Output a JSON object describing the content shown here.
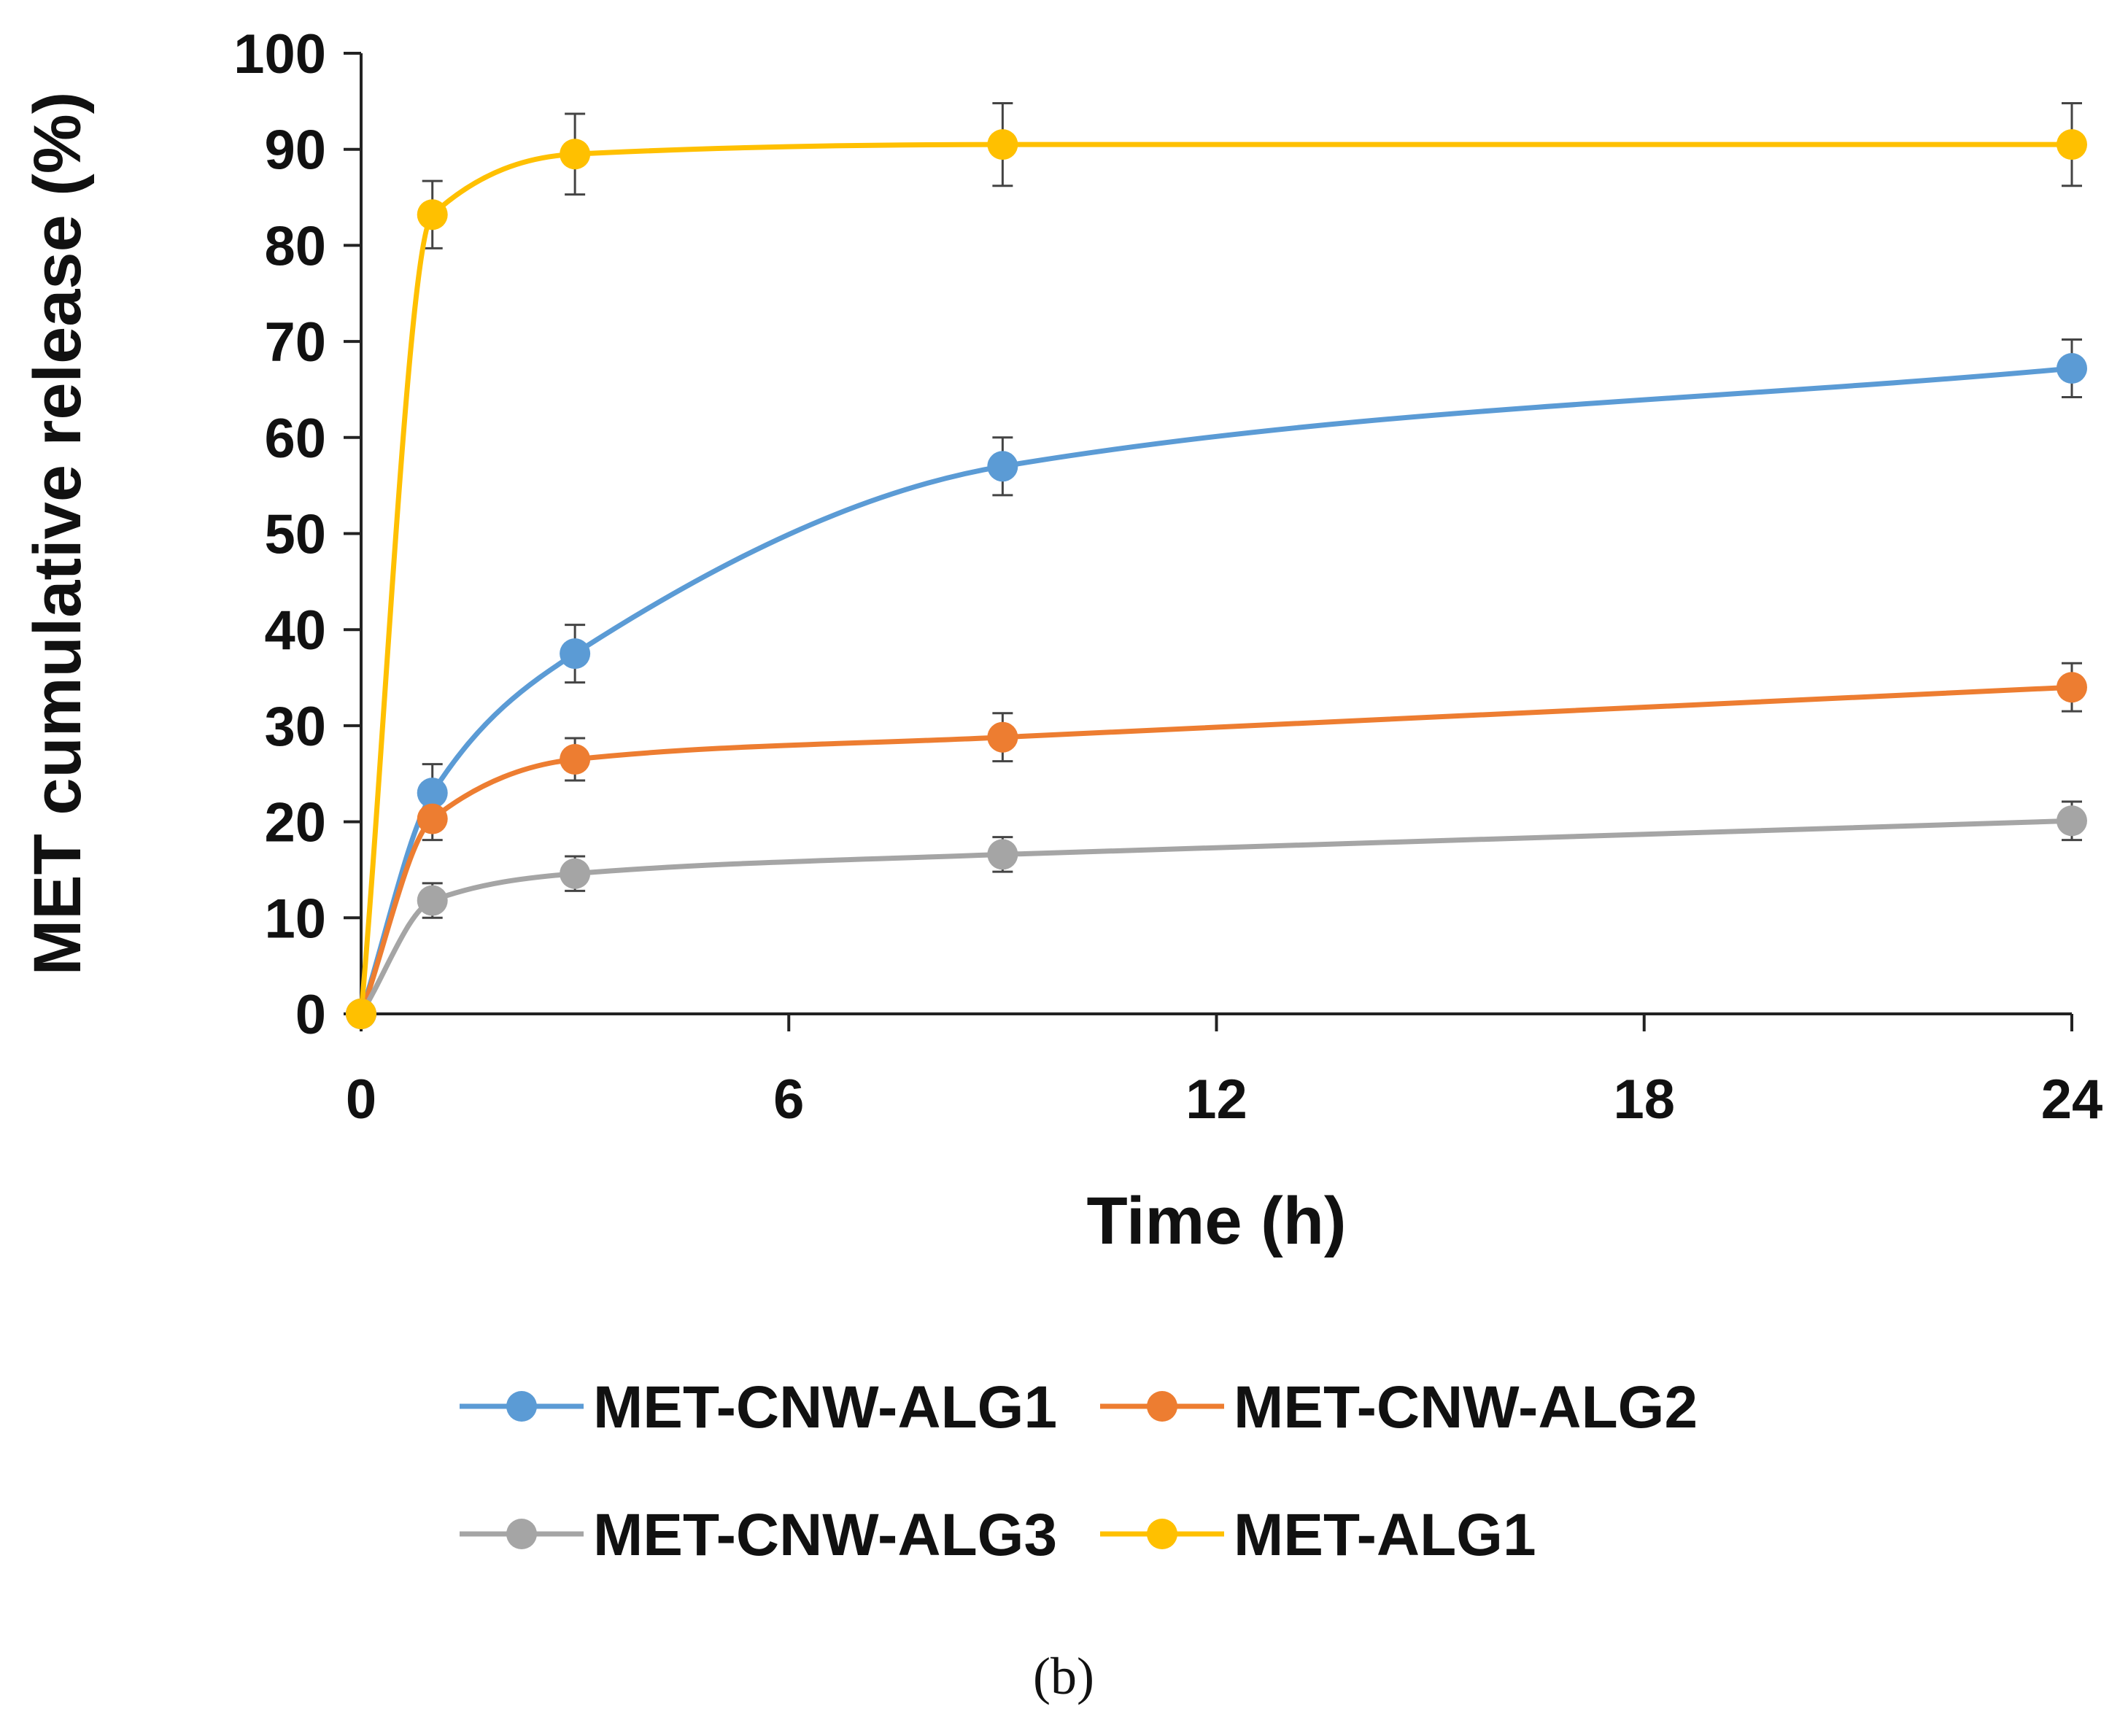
{
  "chart_data": {
    "type": "line",
    "title": "",
    "xlabel": "Time (h)",
    "ylabel": "MET cumulative release (%)",
    "xlim": [
      0,
      24
    ],
    "ylim": [
      0,
      100
    ],
    "x_ticks": [
      "0",
      "6",
      "12",
      "18",
      "24"
    ],
    "y_ticks": [
      "0",
      "10",
      "20",
      "30",
      "40",
      "50",
      "60",
      "70",
      "80",
      "90",
      "100"
    ],
    "grid": false,
    "legend_position": "bottom",
    "panel_label": "(b)",
    "series": [
      {
        "name": "MET-CNW-ALG1",
        "color": "#5b9bd5",
        "x": [
          0,
          1,
          3,
          9,
          24
        ],
        "y": [
          0,
          23,
          37.5,
          57,
          67.2
        ],
        "error": [
          0,
          3,
          3,
          3,
          3
        ]
      },
      {
        "name": "MET-CNW-ALG2",
        "color": "#ed7d31",
        "x": [
          0,
          1,
          3,
          9,
          24
        ],
        "y": [
          0,
          20.3,
          26.5,
          28.8,
          34
        ],
        "error": [
          0,
          2.2,
          2.2,
          2.5,
          2.5
        ]
      },
      {
        "name": "MET-CNW-ALG3",
        "color": "#a5a5a5",
        "x": [
          0,
          1,
          3,
          9,
          24
        ],
        "y": [
          0,
          11.8,
          14.6,
          16.6,
          20.1
        ],
        "error": [
          0,
          1.8,
          1.8,
          1.8,
          2.0
        ]
      },
      {
        "name": "MET-ALG1",
        "color": "#ffc000",
        "x": [
          0,
          1,
          3,
          9,
          24
        ],
        "y": [
          0,
          83.2,
          89.5,
          90.5,
          90.5
        ],
        "error": [
          0,
          3.5,
          4.2,
          4.3,
          4.3
        ]
      }
    ]
  }
}
